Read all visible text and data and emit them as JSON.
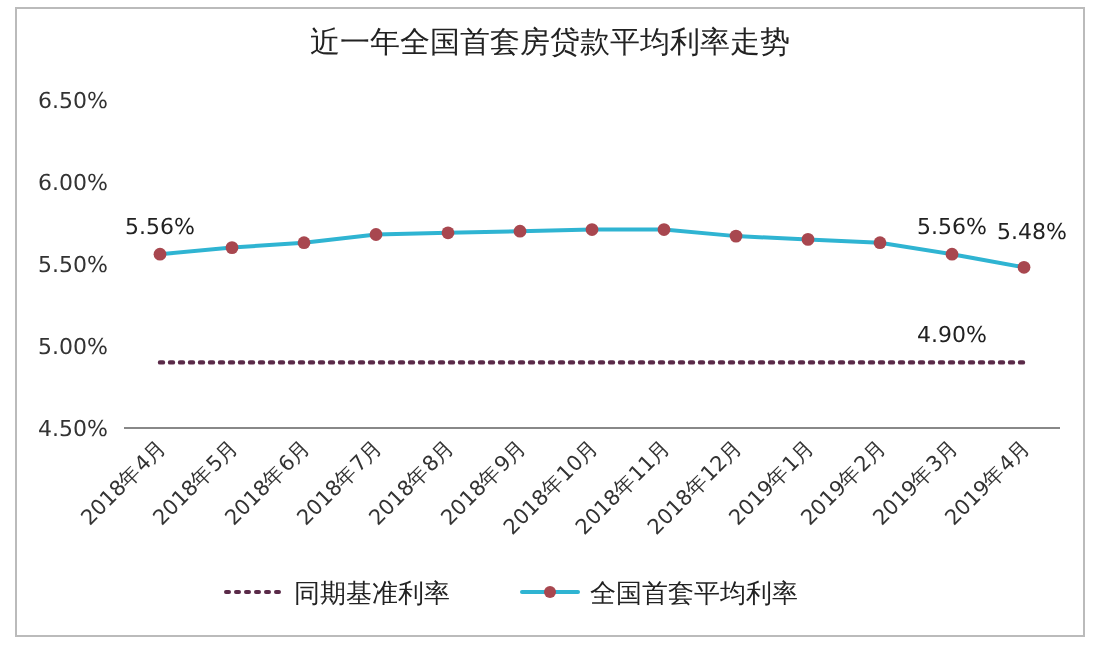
{
  "chart_data": {
    "type": "line",
    "title": "近一年全国首套房贷款平均利率走势",
    "categories": [
      "2018年4月",
      "2018年5月",
      "2018年6月",
      "2018年7月",
      "2018年8月",
      "2018年9月",
      "2018年10月",
      "2018年11月",
      "2018年12月",
      "2019年1月",
      "2019年2月",
      "2019年3月",
      "2019年4月"
    ],
    "series": [
      {
        "name": "同期基准利率",
        "color": "#5a2a48",
        "line_style": "dotted",
        "marker": "none",
        "values": [
          4.9,
          4.9,
          4.9,
          4.9,
          4.9,
          4.9,
          4.9,
          4.9,
          4.9,
          4.9,
          4.9,
          4.9,
          4.9
        ],
        "value_labels": [
          null,
          null,
          null,
          null,
          null,
          null,
          null,
          null,
          null,
          null,
          null,
          "4.90%",
          null
        ]
      },
      {
        "name": "全国首套平均利率",
        "color": "#2fb4d2",
        "line_style": "solid",
        "marker": "circle",
        "values": [
          5.56,
          5.6,
          5.63,
          5.68,
          5.69,
          5.7,
          5.71,
          5.71,
          5.67,
          5.65,
          5.63,
          5.56,
          5.48
        ],
        "value_labels": [
          "5.56%",
          null,
          null,
          null,
          null,
          null,
          null,
          null,
          null,
          null,
          null,
          "5.56%",
          "5.48%"
        ]
      }
    ],
    "ylim": [
      4.5,
      6.5
    ],
    "yticks": [
      {
        "value": 4.5,
        "label": "4.50%"
      },
      {
        "value": 5.0,
        "label": "5.00%"
      },
      {
        "value": 5.5,
        "label": "5.50%"
      },
      {
        "value": 6.0,
        "label": "6.00%"
      },
      {
        "value": 6.5,
        "label": "6.50%"
      }
    ],
    "grid": false,
    "legend": "bottom"
  }
}
